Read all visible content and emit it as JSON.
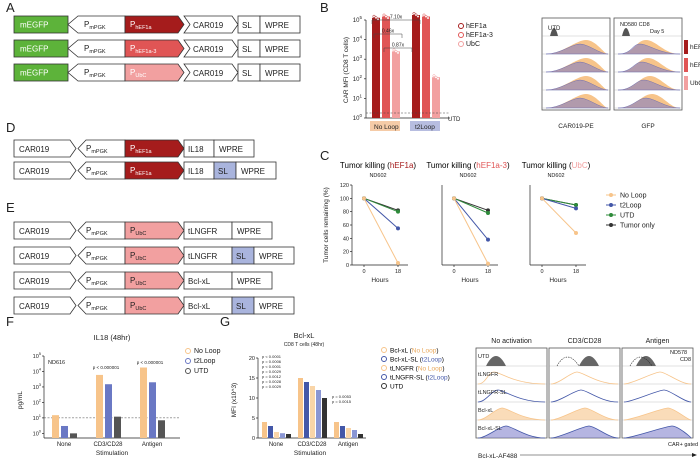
{
  "panels": {
    "A": "A",
    "B": "B",
    "C": "C",
    "D": "D",
    "E": "E",
    "F": "F",
    "G": "G"
  },
  "constructs": {
    "A": [
      {
        "rep": "mEGFP",
        "pmpgk": "PmPGK",
        "prom": "PhEF1a",
        "car": "CAR019",
        "sl": "SL",
        "wpre": "WPRE"
      },
      {
        "rep": "mEGFP",
        "pmpgk": "PmPGK",
        "prom": "PhEF1a-3",
        "car": "CAR019",
        "sl": "SL",
        "wpre": "WPRE"
      },
      {
        "rep": "mEGFP",
        "pmpgk": "PmPGK",
        "prom": "PUbC",
        "car": "CAR019",
        "sl": "SL",
        "wpre": "WPRE"
      }
    ],
    "D": [
      {
        "car": "CAR019",
        "pmpgk": "PmPGK",
        "prom": "PhEF1a",
        "gene": "IL18",
        "wpre": "WPRE"
      },
      {
        "car": "CAR019",
        "pmpgk": "PmPGK",
        "prom": "PhEF1a",
        "gene": "IL18",
        "sl": "SL",
        "wpre": "WPRE"
      }
    ],
    "E": [
      {
        "car": "CAR019",
        "pmpgk": "PmPGK",
        "prom": "PUbC",
        "gene": "tLNGFR",
        "wpre": "WPRE"
      },
      {
        "car": "CAR019",
        "pmpgk": "PmPGK",
        "prom": "PUbC",
        "gene": "tLNGFR",
        "sl": "SL",
        "wpre": "WPRE"
      },
      {
        "car": "CAR019",
        "pmpgk": "PmPGK",
        "prom": "PUbC",
        "gene": "Bcl-xL",
        "wpre": "WPRE"
      },
      {
        "car": "CAR019",
        "pmpgk": "PmPGK",
        "prom": "PUbC",
        "gene": "Bcl-xL",
        "sl": "SL",
        "wpre": "WPRE"
      }
    ]
  },
  "colors": {
    "hEF1a": "#a51c1c",
    "hEF1a3": "#e05555",
    "UbC": "#f2a0a0",
    "green": "#5db33a",
    "sl": "#a9b4dd",
    "noloop": "#f7c48a",
    "t2loop": "#4357a8",
    "utd": "#2e8b3a",
    "tumor": "#333333",
    "gray": "#666666"
  },
  "B": {
    "chart_data": {
      "type": "bar",
      "ylabel": "CAR MFI (CD8 T cells)",
      "categories": [
        "No Loop",
        "t2Loop"
      ],
      "series": [
        {
          "name": "hEF1a",
          "values": [
            130000,
            180000
          ]
        },
        {
          "name": "hEF1a-3",
          "values": [
            150000,
            150000
          ]
        },
        {
          "name": "UbC",
          "values": [
            2500,
            120
          ]
        }
      ],
      "yticks": [
        "10^0",
        "10^1",
        "10^2",
        "10^3",
        "10^4",
        "10^5"
      ],
      "utd": "UTD"
    },
    "annotations": [
      "7.10x",
      "0.46x",
      "0.87x"
    ],
    "legend": [
      "hEF1a",
      "hEF1a-3",
      "UbC"
    ],
    "flow": {
      "title": "ND580 CD8\nDay 5",
      "utd": "UTD",
      "labels": [
        "hEF1a",
        "hEF1a-3",
        "UbC"
      ],
      "x1": "CAR019-PE",
      "x2": "GFP"
    }
  },
  "C": {
    "ylabel": "Tumor cells remaining (%)",
    "xlabel": "Hours",
    "subtitle": "ND602",
    "titles": [
      [
        "Tumor killing (",
        "hEF1a",
        ")"
      ],
      [
        "Tumor killing (",
        "hEF1a-3",
        ")"
      ],
      [
        "Tumor killing (",
        "UbC",
        ")"
      ]
    ],
    "legend": [
      "No Loop",
      "t2Loop",
      "UTD",
      "Tumor only"
    ],
    "yticks": [
      "0",
      "20",
      "40",
      "60",
      "80",
      "100",
      "120"
    ],
    "xticks": [
      "0",
      "18"
    ],
    "chart_data": [
      {
        "type": "line",
        "x": [
          0,
          18
        ],
        "series": [
          {
            "name": "No Loop",
            "values": [
              100,
              3
            ]
          },
          {
            "name": "t2Loop",
            "values": [
              100,
              55
            ]
          },
          {
            "name": "UTD",
            "values": [
              100,
              80
            ]
          },
          {
            "name": "Tumor only",
            "values": [
              100,
              82
            ]
          }
        ]
      },
      {
        "type": "line",
        "x": [
          0,
          18
        ],
        "series": [
          {
            "name": "No Loop",
            "values": [
              100,
              2
            ]
          },
          {
            "name": "t2Loop",
            "values": [
              100,
              38
            ]
          },
          {
            "name": "UTD",
            "values": [
              100,
              78
            ]
          },
          {
            "name": "Tumor only",
            "values": [
              100,
              82
            ]
          }
        ]
      },
      {
        "type": "line",
        "x": [
          0,
          18
        ],
        "series": [
          {
            "name": "No Loop",
            "values": [
              100,
              48
            ]
          },
          {
            "name": "t2Loop",
            "values": [
              100,
              85
            ]
          },
          {
            "name": "UTD",
            "values": [
              100,
              90
            ]
          },
          {
            "name": "Tumor only",
            "values": [
              100,
              90
            ]
          }
        ]
      }
    ]
  },
  "F": {
    "title": "IL18 (48hr)",
    "donor": "ND616",
    "ylabel": "pg/mL",
    "xlabel": "Stimulation",
    "categories": [
      "None",
      "CD3/CD28",
      "Antigen"
    ],
    "pvals": [
      "p < 0.000001",
      "p < 0.000001"
    ],
    "legend": [
      "No Loop",
      "t2Loop",
      "UTD"
    ],
    "chart_data": {
      "type": "bar",
      "series": [
        {
          "name": "No Loop",
          "values": [
            15,
            6000,
            18000
          ]
        },
        {
          "name": "t2Loop",
          "values": [
            3,
            1500,
            2000
          ]
        },
        {
          "name": "UTD",
          "values": [
            1,
            12,
            7
          ]
        }
      ]
    }
  },
  "G": {
    "title": "Bcl-xL",
    "subtitle": "CD8 T cells (48hr)",
    "ylabel": "MFI (x10^3)",
    "xlabel": "Stimulation",
    "categories": [
      "None",
      "CD3/CD28",
      "Antigen"
    ],
    "pvals": [
      "p < 0.0001",
      "p = 0.0006",
      "p < 0.0001",
      "p = 0.0029",
      "p = 0.0012",
      "p = 0.0028",
      "p = 0.0029",
      "p = 0.0053",
      "p = 0.0015"
    ],
    "legend": [
      [
        "Bcl-xL (",
        "No Loop",
        ")"
      ],
      [
        "Bcl-xL-SL (",
        "t2Loop",
        ")"
      ],
      [
        "tLNGFR (",
        "No Loop",
        ")"
      ],
      [
        "tLNGFR-SL (",
        "t2Loop",
        ")"
      ],
      [
        "UTD",
        "",
        ""
      ]
    ],
    "yticks": [
      "0",
      "5",
      "10",
      "15",
      "20"
    ],
    "chart_data": {
      "type": "bar",
      "series": [
        {
          "name": "Bcl-xL",
          "values": [
            4,
            15,
            4
          ]
        },
        {
          "name": "Bcl-xL-SL",
          "values": [
            3,
            14,
            3
          ]
        },
        {
          "name": "tLNGFR",
          "values": [
            1.5,
            13,
            2.5
          ]
        },
        {
          "name": "tLNGFR-SL",
          "values": [
            1.2,
            12,
            2
          ]
        },
        {
          "name": "UTD",
          "values": [
            1,
            10,
            1
          ]
        }
      ]
    },
    "flow": {
      "cols": [
        "No activation",
        "CD3/CD28",
        "Antigen"
      ],
      "rows": [
        "UTD",
        "tLNGFR",
        "tLNGFR-SL",
        "Bcl-xL",
        "Bcl-xL-SL"
      ],
      "xlabel": "Bcl-xL-AF488",
      "gate": "CAR+ gated",
      "donor": "ND578\nCD8"
    }
  }
}
